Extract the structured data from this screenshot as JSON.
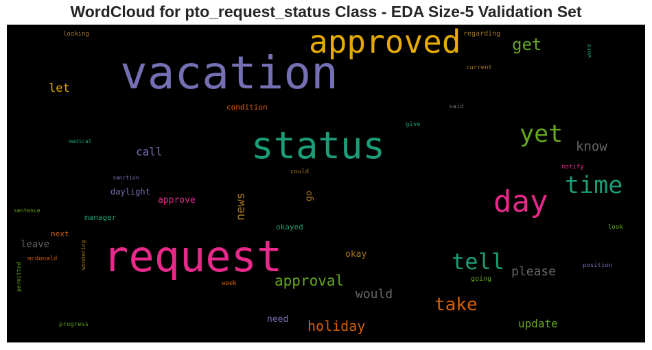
{
  "chart_data": {
    "type": "wordcloud",
    "title": "WordCloud for pto_request_status Class - EDA Size-5 Validation Set",
    "background": "#000000",
    "colormap": [
      "#1b9e77",
      "#d95f02",
      "#7570b3",
      "#e7298a",
      "#66a61e",
      "#e6ab02",
      "#a6761d",
      "#666666"
    ],
    "words": [
      {
        "text": "vacation",
        "weight": 1.0,
        "color": "#7570b3"
      },
      {
        "text": "request",
        "weight": 0.92,
        "color": "#e7298a"
      },
      {
        "text": "status",
        "weight": 0.78,
        "color": "#1b9e77"
      },
      {
        "text": "approved",
        "weight": 0.66,
        "color": "#e6ab02"
      },
      {
        "text": "day",
        "weight": 0.62,
        "color": "#e7298a"
      },
      {
        "text": "time",
        "weight": 0.48,
        "color": "#1b9e77"
      },
      {
        "text": "yet",
        "weight": 0.46,
        "color": "#66a61e"
      },
      {
        "text": "tell",
        "weight": 0.42,
        "color": "#1b9e77"
      },
      {
        "text": "take",
        "weight": 0.36,
        "color": "#d95f02"
      },
      {
        "text": "get",
        "weight": 0.33,
        "color": "#66a61e"
      },
      {
        "text": "approval",
        "weight": 0.32,
        "color": "#66a61e"
      },
      {
        "text": "holiday",
        "weight": 0.3,
        "color": "#d95f02"
      },
      {
        "text": "know",
        "weight": 0.28,
        "color": "#666666"
      },
      {
        "text": "please",
        "weight": 0.27,
        "color": "#666666"
      },
      {
        "text": "would",
        "weight": 0.26,
        "color": "#666666"
      },
      {
        "text": "let",
        "weight": 0.25,
        "color": "#e6ab02"
      },
      {
        "text": "news",
        "weight": 0.24,
        "color": "#a6761d"
      },
      {
        "text": "update",
        "weight": 0.24,
        "color": "#66a61e"
      },
      {
        "text": "call",
        "weight": 0.23,
        "color": "#7570b3"
      },
      {
        "text": "leave",
        "weight": 0.2,
        "color": "#666666"
      },
      {
        "text": "okay",
        "weight": 0.19,
        "color": "#a6761d"
      },
      {
        "text": "go",
        "weight": 0.19,
        "color": "#a6761d"
      },
      {
        "text": "need",
        "weight": 0.19,
        "color": "#7570b3"
      },
      {
        "text": "approve",
        "weight": 0.19,
        "color": "#e7298a"
      },
      {
        "text": "daylight",
        "weight": 0.18,
        "color": "#7570b3"
      },
      {
        "text": "condition",
        "weight": 0.17,
        "color": "#d95f02"
      },
      {
        "text": "okayed",
        "weight": 0.16,
        "color": "#1b9e77"
      },
      {
        "text": "manager",
        "weight": 0.16,
        "color": "#1b9e77"
      },
      {
        "text": "next",
        "weight": 0.16,
        "color": "#d95f02"
      },
      {
        "text": "going",
        "weight": 0.15,
        "color": "#66a61e"
      },
      {
        "text": "regarding",
        "weight": 0.15,
        "color": "#a6761d"
      },
      {
        "text": "mcdonald",
        "weight": 0.13,
        "color": "#d95f02"
      },
      {
        "text": "wondering",
        "weight": 0.12,
        "color": "#a6761d"
      },
      {
        "text": "permitted",
        "weight": 0.11,
        "color": "#66a61e"
      },
      {
        "text": "progress",
        "weight": 0.12,
        "color": "#66a61e"
      },
      {
        "text": "week",
        "weight": 0.12,
        "color": "#d95f02"
      },
      {
        "text": "position",
        "weight": 0.12,
        "color": "#7570b3"
      },
      {
        "text": "look",
        "weight": 0.11,
        "color": "#66a61e"
      },
      {
        "text": "notify",
        "weight": 0.12,
        "color": "#e7298a"
      },
      {
        "text": "could",
        "weight": 0.11,
        "color": "#a6761d"
      },
      {
        "text": "give",
        "weight": 0.11,
        "color": "#1b9e77"
      },
      {
        "text": "said",
        "weight": 0.11,
        "color": "#666666"
      },
      {
        "text": "current",
        "weight": 0.12,
        "color": "#a6761d"
      },
      {
        "text": "word",
        "weight": 0.11,
        "color": "#1b9e77"
      },
      {
        "text": "looking",
        "weight": 0.12,
        "color": "#a6761d"
      },
      {
        "text": "medical",
        "weight": 0.11,
        "color": "#1b9e77"
      },
      {
        "text": "sanction",
        "weight": 0.11,
        "color": "#7570b3"
      },
      {
        "text": "sentence",
        "weight": 0.11,
        "color": "#66a61e"
      }
    ]
  }
}
